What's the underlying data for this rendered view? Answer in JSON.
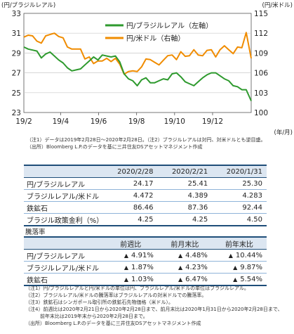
{
  "chart_data": {
    "type": "line",
    "left_axis": {
      "unit": "(円/ブラジルレアル)",
      "ylim": [
        23,
        33
      ],
      "ticks": [
        "23",
        "25",
        "27",
        "29",
        "31",
        "33"
      ]
    },
    "right_axis": {
      "unit": "(円/米ドル)",
      "ylim": [
        100,
        115
      ],
      "ticks": [
        "100",
        "103",
        "106",
        "109",
        "112",
        "115"
      ]
    },
    "x_axis": {
      "unit": "(年/月)",
      "ticks": [
        "19/2",
        "19/4",
        "19/6",
        "19/8",
        "19/10",
        "19/12"
      ],
      "xlim": [
        "2019-02-28",
        "2020-02-28"
      ]
    },
    "legend_placement": "top-right",
    "series": [
      {
        "name": "円/ブラジルレアル（左軸）",
        "axis": "left",
        "color": "#2e9a2e",
        "points": [
          [
            "2019-02-28",
            29.6
          ],
          [
            "2019-03-07",
            29.4
          ],
          [
            "2019-03-14",
            29.3
          ],
          [
            "2019-03-21",
            29.2
          ],
          [
            "2019-03-28",
            28.5
          ],
          [
            "2019-04-04",
            28.9
          ],
          [
            "2019-04-11",
            29.1
          ],
          [
            "2019-04-18",
            28.7
          ],
          [
            "2019-04-25",
            28.3
          ],
          [
            "2019-05-02",
            28.0
          ],
          [
            "2019-05-09",
            27.5
          ],
          [
            "2019-05-16",
            27.2
          ],
          [
            "2019-05-23",
            27.3
          ],
          [
            "2019-05-30",
            27.4
          ],
          [
            "2019-06-06",
            27.8
          ],
          [
            "2019-06-13",
            28.2
          ],
          [
            "2019-06-20",
            28.6
          ],
          [
            "2019-06-27",
            28.3
          ],
          [
            "2019-07-04",
            28.8
          ],
          [
            "2019-07-11",
            28.7
          ],
          [
            "2019-07-18",
            28.6
          ],
          [
            "2019-07-25",
            28.7
          ],
          [
            "2019-08-01",
            28.1
          ],
          [
            "2019-08-08",
            26.9
          ],
          [
            "2019-08-15",
            26.4
          ],
          [
            "2019-08-22",
            26.2
          ],
          [
            "2019-08-29",
            25.7
          ],
          [
            "2019-09-05",
            26.3
          ],
          [
            "2019-09-12",
            26.5
          ],
          [
            "2019-09-19",
            26.0
          ],
          [
            "2019-09-26",
            26.0
          ],
          [
            "2019-10-03",
            26.2
          ],
          [
            "2019-10-10",
            26.4
          ],
          [
            "2019-10-17",
            26.3
          ],
          [
            "2019-10-24",
            26.9
          ],
          [
            "2019-10-31",
            27.0
          ],
          [
            "2019-11-07",
            26.6
          ],
          [
            "2019-11-14",
            26.1
          ],
          [
            "2019-11-21",
            25.9
          ],
          [
            "2019-11-28",
            25.7
          ],
          [
            "2019-12-05",
            26.1
          ],
          [
            "2019-12-12",
            26.5
          ],
          [
            "2019-12-19",
            26.8
          ],
          [
            "2019-12-26",
            27.0
          ],
          [
            "2020-01-02",
            27.0
          ],
          [
            "2020-01-09",
            26.7
          ],
          [
            "2020-01-16",
            26.4
          ],
          [
            "2020-01-23",
            26.2
          ],
          [
            "2020-01-30",
            25.7
          ],
          [
            "2020-02-06",
            25.6
          ],
          [
            "2020-02-13",
            25.3
          ],
          [
            "2020-02-20",
            25.3
          ],
          [
            "2020-02-28",
            24.17
          ]
        ]
      },
      {
        "name": "円/米ドル（右軸）",
        "axis": "right",
        "color": "#f08c00",
        "points": [
          [
            "2019-02-28",
            111.4
          ],
          [
            "2019-03-07",
            111.7
          ],
          [
            "2019-03-14",
            111.6
          ],
          [
            "2019-03-21",
            110.8
          ],
          [
            "2019-03-28",
            110.5
          ],
          [
            "2019-04-04",
            111.6
          ],
          [
            "2019-04-11",
            111.8
          ],
          [
            "2019-04-18",
            112.0
          ],
          [
            "2019-04-25",
            111.5
          ],
          [
            "2019-05-02",
            111.3
          ],
          [
            "2019-05-09",
            109.9
          ],
          [
            "2019-05-16",
            109.6
          ],
          [
            "2019-05-23",
            109.6
          ],
          [
            "2019-05-30",
            109.6
          ],
          [
            "2019-06-06",
            108.1
          ],
          [
            "2019-06-13",
            108.4
          ],
          [
            "2019-06-20",
            107.4
          ],
          [
            "2019-06-27",
            107.8
          ],
          [
            "2019-07-04",
            107.8
          ],
          [
            "2019-07-11",
            108.2
          ],
          [
            "2019-07-18",
            107.7
          ],
          [
            "2019-07-25",
            108.2
          ],
          [
            "2019-08-01",
            107.3
          ],
          [
            "2019-08-08",
            105.8
          ],
          [
            "2019-08-15",
            106.2
          ],
          [
            "2019-08-22",
            106.3
          ],
          [
            "2019-08-29",
            106.2
          ],
          [
            "2019-09-05",
            106.9
          ],
          [
            "2019-09-12",
            108.1
          ],
          [
            "2019-09-19",
            108.0
          ],
          [
            "2019-09-26",
            107.6
          ],
          [
            "2019-10-03",
            107.2
          ],
          [
            "2019-10-10",
            107.9
          ],
          [
            "2019-10-17",
            108.6
          ],
          [
            "2019-10-24",
            108.7
          ],
          [
            "2019-10-31",
            108.0
          ],
          [
            "2019-11-07",
            109.2
          ],
          [
            "2019-11-14",
            108.5
          ],
          [
            "2019-11-21",
            108.6
          ],
          [
            "2019-11-28",
            109.5
          ],
          [
            "2019-12-05",
            108.7
          ],
          [
            "2019-12-12",
            108.6
          ],
          [
            "2019-12-19",
            109.4
          ],
          [
            "2019-12-26",
            109.5
          ],
          [
            "2020-01-02",
            108.4
          ],
          [
            "2020-01-09",
            109.5
          ],
          [
            "2020-01-16",
            110.1
          ],
          [
            "2020-01-23",
            109.5
          ],
          [
            "2020-01-30",
            108.9
          ],
          [
            "2020-02-06",
            109.9
          ],
          [
            "2020-02-13",
            109.8
          ],
          [
            "2020-02-20",
            112.1
          ],
          [
            "2020-02-28",
            108.2
          ]
        ]
      }
    ]
  },
  "chart_notes": [
    "（注1）データは2019年2月28日～2020年2月28日。（注2）ブラジルレアルは対円、対米ドルとも逆目盛。",
    "（出所）Bloomberg L.P.のデータを基に三井住友DSアセットマネジメント作成"
  ],
  "levels_table": {
    "headers": [
      "2020/2/28",
      "2020/2/21",
      "2020/1/31"
    ],
    "rows": [
      {
        "label": "円/ブラジルレアル",
        "values": [
          "24.17",
          "25.41",
          "25.30"
        ]
      },
      {
        "label": "ブラジルレアル/米ドル",
        "values": [
          "4.472",
          "4.389",
          "4.283"
        ]
      },
      {
        "label": "鉄鉱石",
        "values": [
          "86.46",
          "87.36",
          "92.44"
        ]
      },
      {
        "label": "ブラジル政策金利（%）",
        "values": [
          "4.25",
          "4.25",
          "4.50"
        ]
      }
    ]
  },
  "change_section_label": "騰落率",
  "change_table": {
    "headers": [
      "前週比",
      "前月末比",
      "前年末比"
    ],
    "rows": [
      {
        "label": "円/ブラジルレアル",
        "values": [
          "4.91%",
          "4.48%",
          "10.44%"
        ]
      },
      {
        "label": "ブラジルレアル/米ドル",
        "values": [
          "1.87%",
          "4.23%",
          "9.87%"
        ]
      },
      {
        "label": "鉄鉱石",
        "values": [
          "1.03%",
          "6.47%",
          "5.54%"
        ]
      }
    ],
    "sign_glyph": "▲"
  },
  "footnotes": [
    "（注1）円/ブラジルレアルと円/米ドルの単位は円、ブラジルレアル/米ドルの単位はブラジルレアル。",
    "（注2）ブラジルレアル/米ドルの騰落率はブラジルレアルの対米ドルでの騰落率。",
    "（注3）鉄鉱石はシンガポール取引所の鉄鉱石先物価格（米ドル）。",
    "（注4）前週比は2020年2月21日から2020年2月28日まで、前月末比は2020年1月31日から2020年2月28日まで、",
    "　　　前年末比は2019年末から2020年2月28日まで。",
    "（出所）Bloomberg L.P.のデータを基に三井住友DSアセットマネジメント作成"
  ]
}
